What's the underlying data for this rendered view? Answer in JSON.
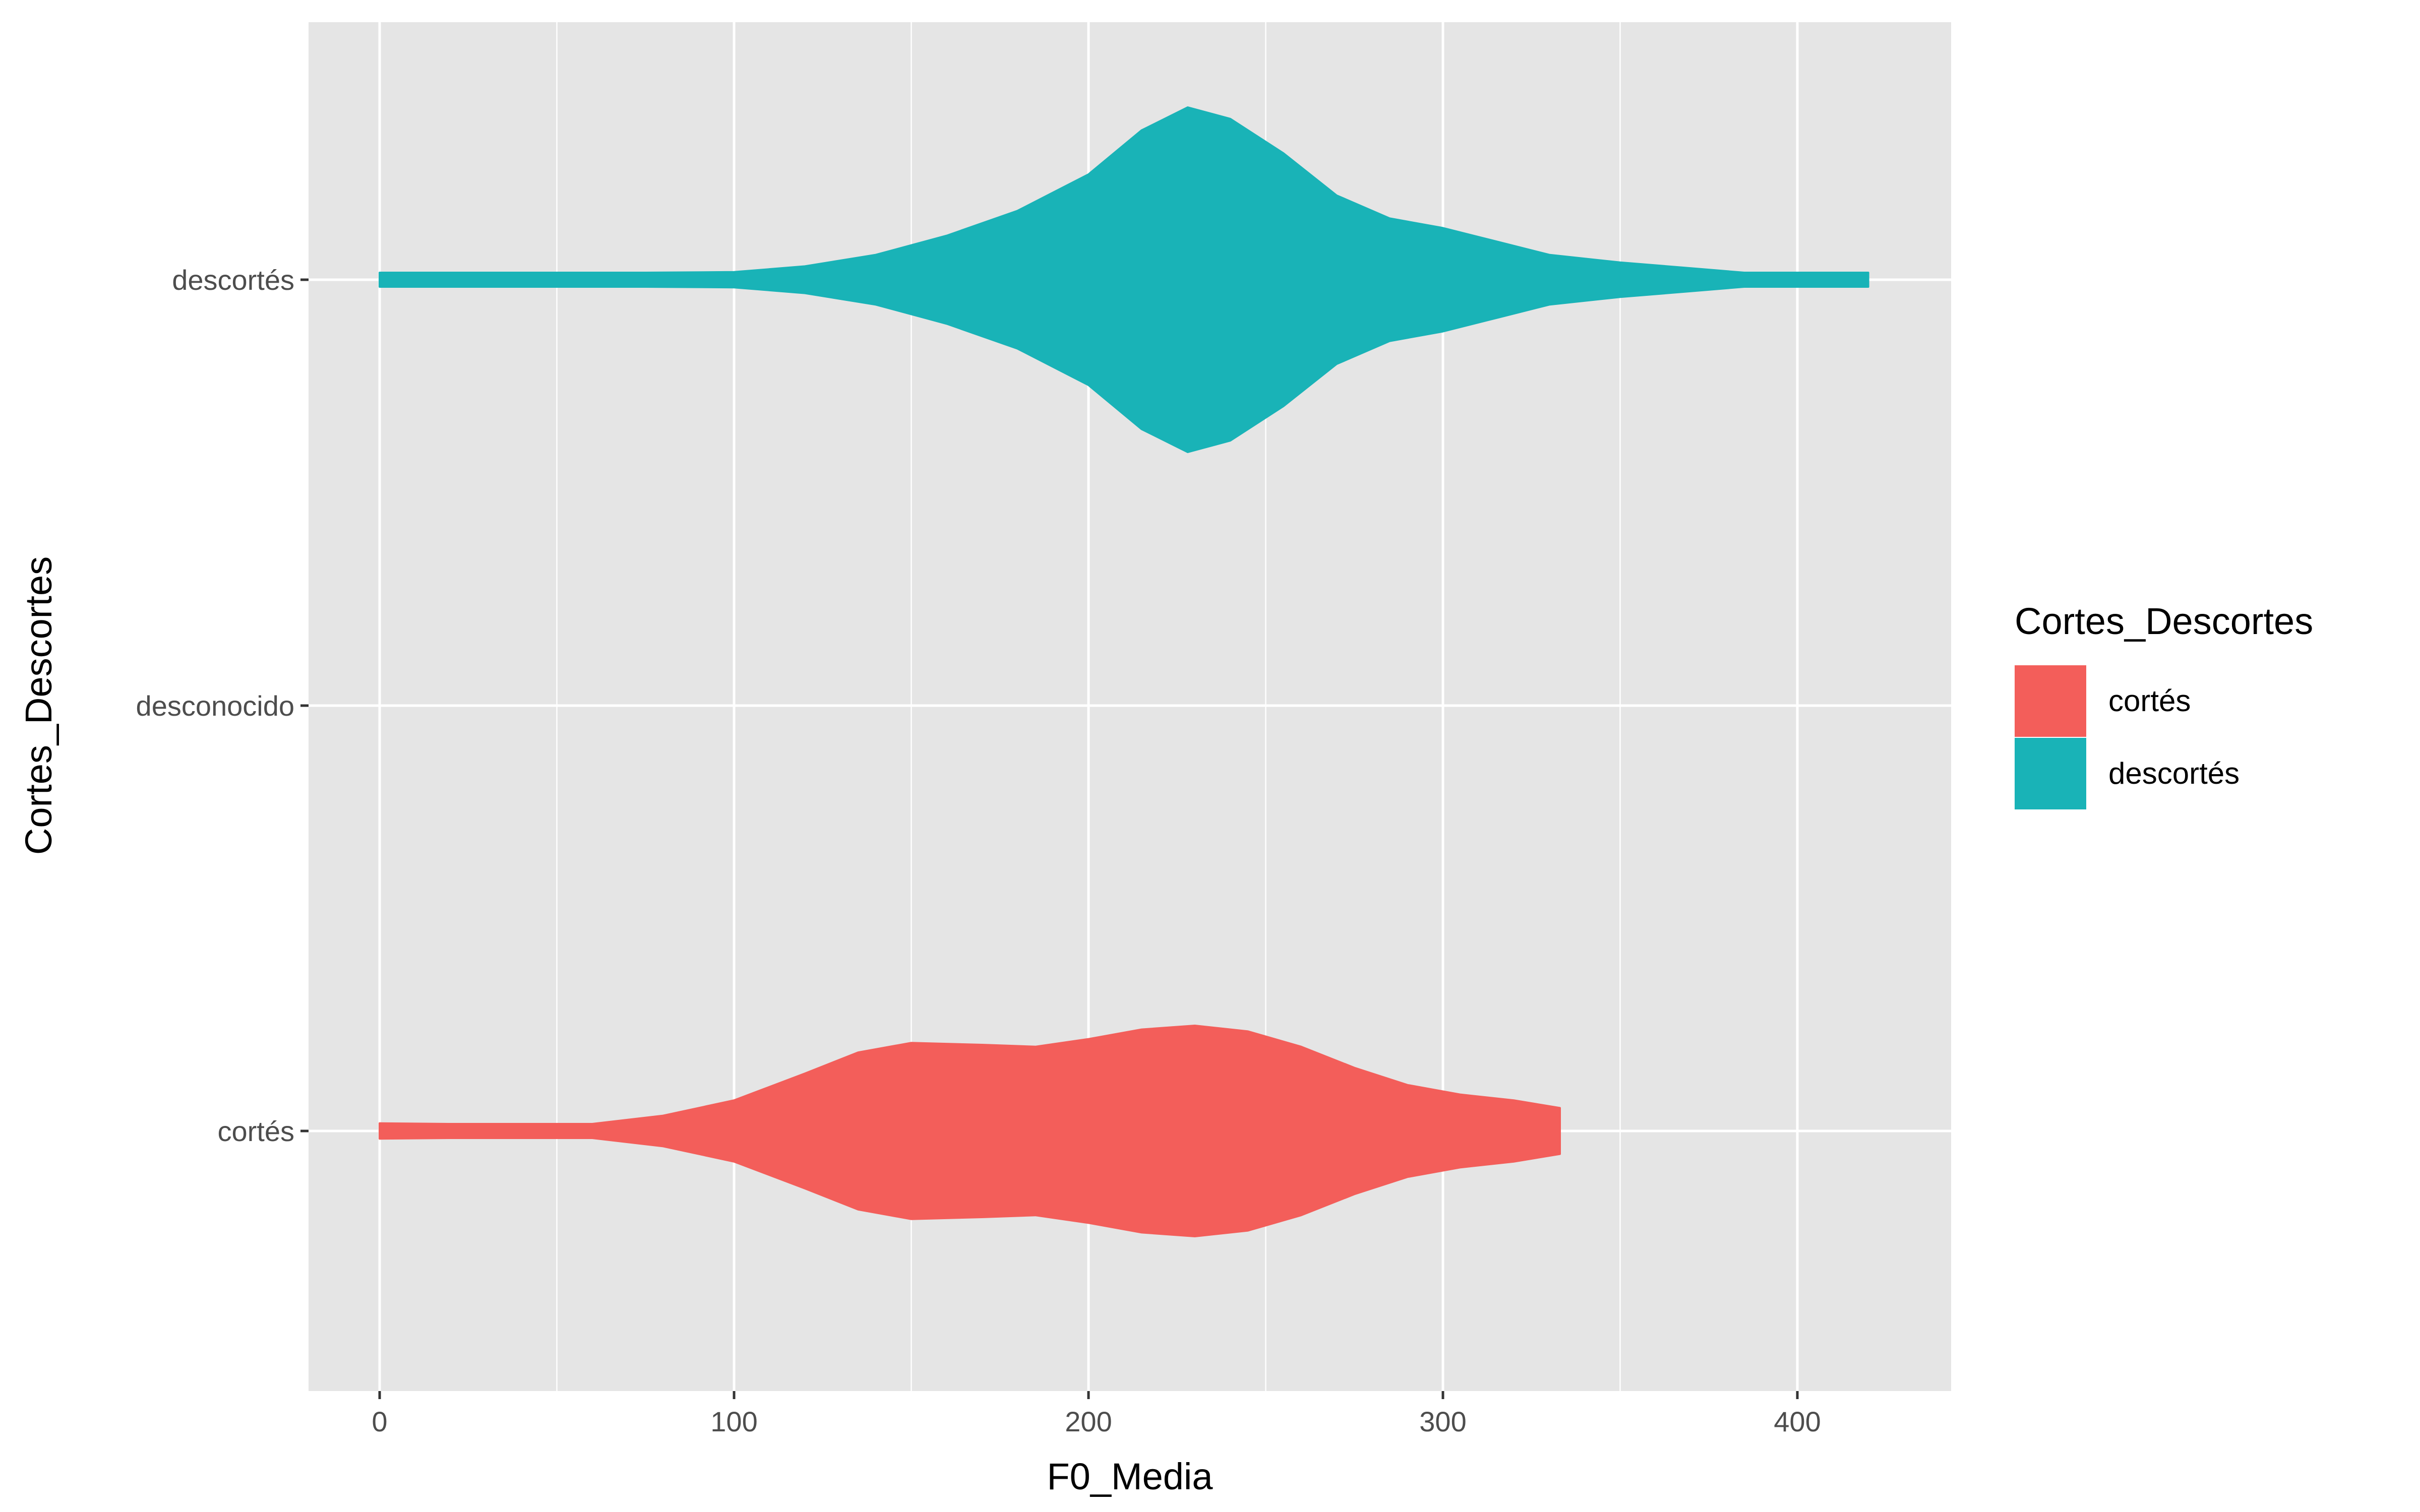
{
  "chart_data": {
    "type": "violin",
    "title": "",
    "xlabel": "F0_Media",
    "ylabel": "Cortes_Descortes",
    "xlim": [
      -20,
      440
    ],
    "x_ticks": [
      0,
      100,
      200,
      300,
      400
    ],
    "categories": [
      "descortés",
      "desconocido",
      "cortés"
    ],
    "grid": true,
    "background": "#e5e5e5",
    "grid_color": "#ffffff",
    "legend": {
      "title": "Cortes_Descortes",
      "position": "right",
      "items": [
        {
          "label": "cortés",
          "color": "#f35e5a"
        },
        {
          "label": "descortés",
          "color": "#19b3b7"
        }
      ]
    },
    "series": [
      {
        "name": "descortés",
        "category": "descortés",
        "color": "#19b3b7",
        "density": [
          [
            0,
            0.02
          ],
          [
            25,
            0.0
          ],
          [
            50,
            0.0
          ],
          [
            75,
            0.01
          ],
          [
            100,
            0.04
          ],
          [
            120,
            0.07
          ],
          [
            140,
            0.13
          ],
          [
            160,
            0.23
          ],
          [
            180,
            0.36
          ],
          [
            200,
            0.55
          ],
          [
            215,
            0.78
          ],
          [
            228,
            0.9
          ],
          [
            240,
            0.84
          ],
          [
            255,
            0.66
          ],
          [
            270,
            0.44
          ],
          [
            285,
            0.32
          ],
          [
            300,
            0.27
          ],
          [
            315,
            0.2
          ],
          [
            330,
            0.13
          ],
          [
            350,
            0.09
          ],
          [
            370,
            0.06
          ],
          [
            385,
            0.03
          ],
          [
            400,
            0.01
          ],
          [
            410,
            0.02
          ],
          [
            420,
            0.03
          ]
        ]
      },
      {
        "name": "cortés",
        "category": "cortés",
        "color": "#f35e5a",
        "density": [
          [
            0,
            0.04
          ],
          [
            20,
            0.01
          ],
          [
            40,
            0.0
          ],
          [
            60,
            0.02
          ],
          [
            80,
            0.08
          ],
          [
            100,
            0.16
          ],
          [
            120,
            0.3
          ],
          [
            135,
            0.41
          ],
          [
            150,
            0.46
          ],
          [
            170,
            0.45
          ],
          [
            185,
            0.44
          ],
          [
            200,
            0.48
          ],
          [
            215,
            0.53
          ],
          [
            230,
            0.55
          ],
          [
            245,
            0.52
          ],
          [
            260,
            0.44
          ],
          [
            275,
            0.33
          ],
          [
            290,
            0.24
          ],
          [
            305,
            0.19
          ],
          [
            320,
            0.16
          ],
          [
            333,
            0.12
          ]
        ]
      }
    ]
  }
}
